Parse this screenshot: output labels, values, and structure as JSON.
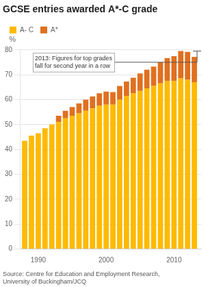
{
  "chart_data": {
    "type": "bar",
    "title": "GCSE entries awarded A*-C grade",
    "y_label": "%",
    "annotation": "2013: Figures for top grades\nfall for second year in a row",
    "source": "Source: Centre for Education and Employment Research,\nUniversity of Buckingham/JCQ",
    "x": [
      1988,
      1989,
      1990,
      1991,
      1992,
      1993,
      1994,
      1995,
      1996,
      1997,
      1998,
      1999,
      2000,
      2001,
      2002,
      2003,
      2004,
      2005,
      2006,
      2007,
      2008,
      2009,
      2010,
      2011,
      2012,
      2013
    ],
    "series": [
      {
        "name": "A- C",
        "color": "#FFBA00",
        "values": [
          43.5,
          45.5,
          46.5,
          48.5,
          50.0,
          51.0,
          52.5,
          53.5,
          54.5,
          55.5,
          56.5,
          57.5,
          58.0,
          58.0,
          60.0,
          61.5,
          62.5,
          63.5,
          64.5,
          65.5,
          66.5,
          67.5,
          67.5,
          68.5,
          68.0,
          67.0
        ]
      },
      {
        "name": "A*",
        "color": "#E07020",
        "values": [
          0.0,
          0.0,
          0.0,
          0.0,
          0.0,
          2.5,
          3.0,
          3.5,
          4.0,
          4.5,
          4.8,
          5.0,
          5.2,
          5.0,
          5.5,
          5.8,
          6.3,
          7.0,
          7.5,
          7.8,
          8.5,
          9.2,
          10.0,
          11.0,
          11.2,
          10.2
        ]
      }
    ],
    "stacked": true,
    "xlim": [
      1987.3,
      2014.0
    ],
    "xticks": [
      1990,
      2000,
      2010
    ],
    "ylim": [
      0,
      80
    ],
    "yticks": [
      0,
      10,
      20,
      30,
      40,
      50,
      60,
      70,
      80
    ],
    "grid": true,
    "legend": "top"
  }
}
